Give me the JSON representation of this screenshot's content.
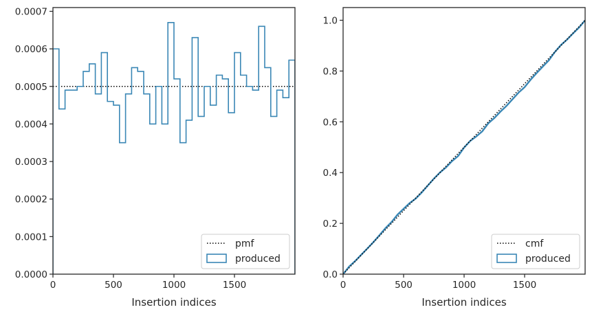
{
  "chart_data": [
    {
      "type": "histogram-step",
      "title": "",
      "xlabel": "Insertion indices",
      "ylabel": "",
      "xlim": [
        0,
        2000
      ],
      "ylim": [
        0,
        0.00071
      ],
      "xticks": [
        0,
        500,
        1000,
        1500
      ],
      "xtick_labels": [
        "0",
        "500",
        "1000",
        "1500"
      ],
      "yticks": [
        0,
        0.0001,
        0.0002,
        0.0003,
        0.0004,
        0.0005,
        0.0006,
        0.0007
      ],
      "ytick_labels": [
        "0.0000",
        "0.0001",
        "0.0002",
        "0.0003",
        "0.0004",
        "0.0005",
        "0.0006",
        "0.0007"
      ],
      "grid": false,
      "legend_position": "lower-right",
      "reference_line": {
        "name": "pmf",
        "value": 0.0005,
        "style": "dotted",
        "color": "#000000"
      },
      "series": [
        {
          "name": "produced",
          "color": "#3a87b5",
          "bin_edges": [
            0,
            50,
            100,
            150,
            200,
            250,
            300,
            350,
            400,
            450,
            500,
            550,
            600,
            650,
            700,
            750,
            800,
            850,
            900,
            950,
            1000,
            1050,
            1100,
            1150,
            1200,
            1250,
            1300,
            1350,
            1400,
            1450,
            1500,
            1550,
            1600,
            1650,
            1700,
            1750,
            1800,
            1850,
            1900,
            1950,
            2000
          ],
          "values": [
            0.0006,
            0.00044,
            0.00049,
            0.00049,
            0.0005,
            0.00054,
            0.00056,
            0.00048,
            0.00059,
            0.00046,
            0.00045,
            0.00035,
            0.00048,
            0.00055,
            0.00054,
            0.00048,
            0.0004,
            0.0005,
            0.0004,
            0.00067,
            0.00052,
            0.00035,
            0.00041,
            0.00063,
            0.00042,
            0.0005,
            0.00045,
            0.00053,
            0.00052,
            0.00043,
            0.00059,
            0.00053,
            0.0005,
            0.00049,
            0.00066,
            0.00055,
            0.00042,
            0.00049,
            0.00047,
            0.00057
          ]
        }
      ]
    },
    {
      "type": "line",
      "title": "",
      "xlabel": "Insertion indices",
      "ylabel": "",
      "xlim": [
        0,
        2000
      ],
      "ylim": [
        0,
        1.05
      ],
      "xticks": [
        0,
        500,
        1000,
        1500
      ],
      "xtick_labels": [
        "0",
        "500",
        "1000",
        "1500"
      ],
      "yticks": [
        0,
        0.2,
        0.4,
        0.6,
        0.8,
        1.0
      ],
      "ytick_labels": [
        "0.0",
        "0.2",
        "0.4",
        "0.6",
        "0.8",
        "1.0"
      ],
      "grid": false,
      "legend_position": "lower-right",
      "reference_line": {
        "name": "cmf",
        "from": [
          0,
          0
        ],
        "to": [
          2000,
          1.0
        ],
        "style": "dotted",
        "color": "#000000"
      },
      "series": [
        {
          "name": "produced",
          "color": "#3a87b5",
          "x": [
            0,
            50,
            100,
            150,
            200,
            250,
            300,
            350,
            400,
            450,
            500,
            550,
            600,
            650,
            700,
            750,
            800,
            850,
            900,
            950,
            1000,
            1050,
            1100,
            1150,
            1200,
            1250,
            1300,
            1350,
            1400,
            1450,
            1500,
            1550,
            1600,
            1650,
            1700,
            1750,
            1800,
            1850,
            1900,
            1950,
            2000
          ],
          "y": [
            0.0,
            0.03,
            0.052,
            0.0765,
            0.101,
            0.126,
            0.153,
            0.181,
            0.205,
            0.2345,
            0.2575,
            0.28,
            0.2975,
            0.3215,
            0.349,
            0.376,
            0.4,
            0.42,
            0.445,
            0.465,
            0.4985,
            0.5245,
            0.542,
            0.5625,
            0.594,
            0.615,
            0.64,
            0.6625,
            0.689,
            0.715,
            0.7365,
            0.766,
            0.7925,
            0.8175,
            0.842,
            0.875,
            0.9025,
            0.9235,
            0.948,
            0.9715,
            1.0
          ]
        }
      ]
    }
  ]
}
